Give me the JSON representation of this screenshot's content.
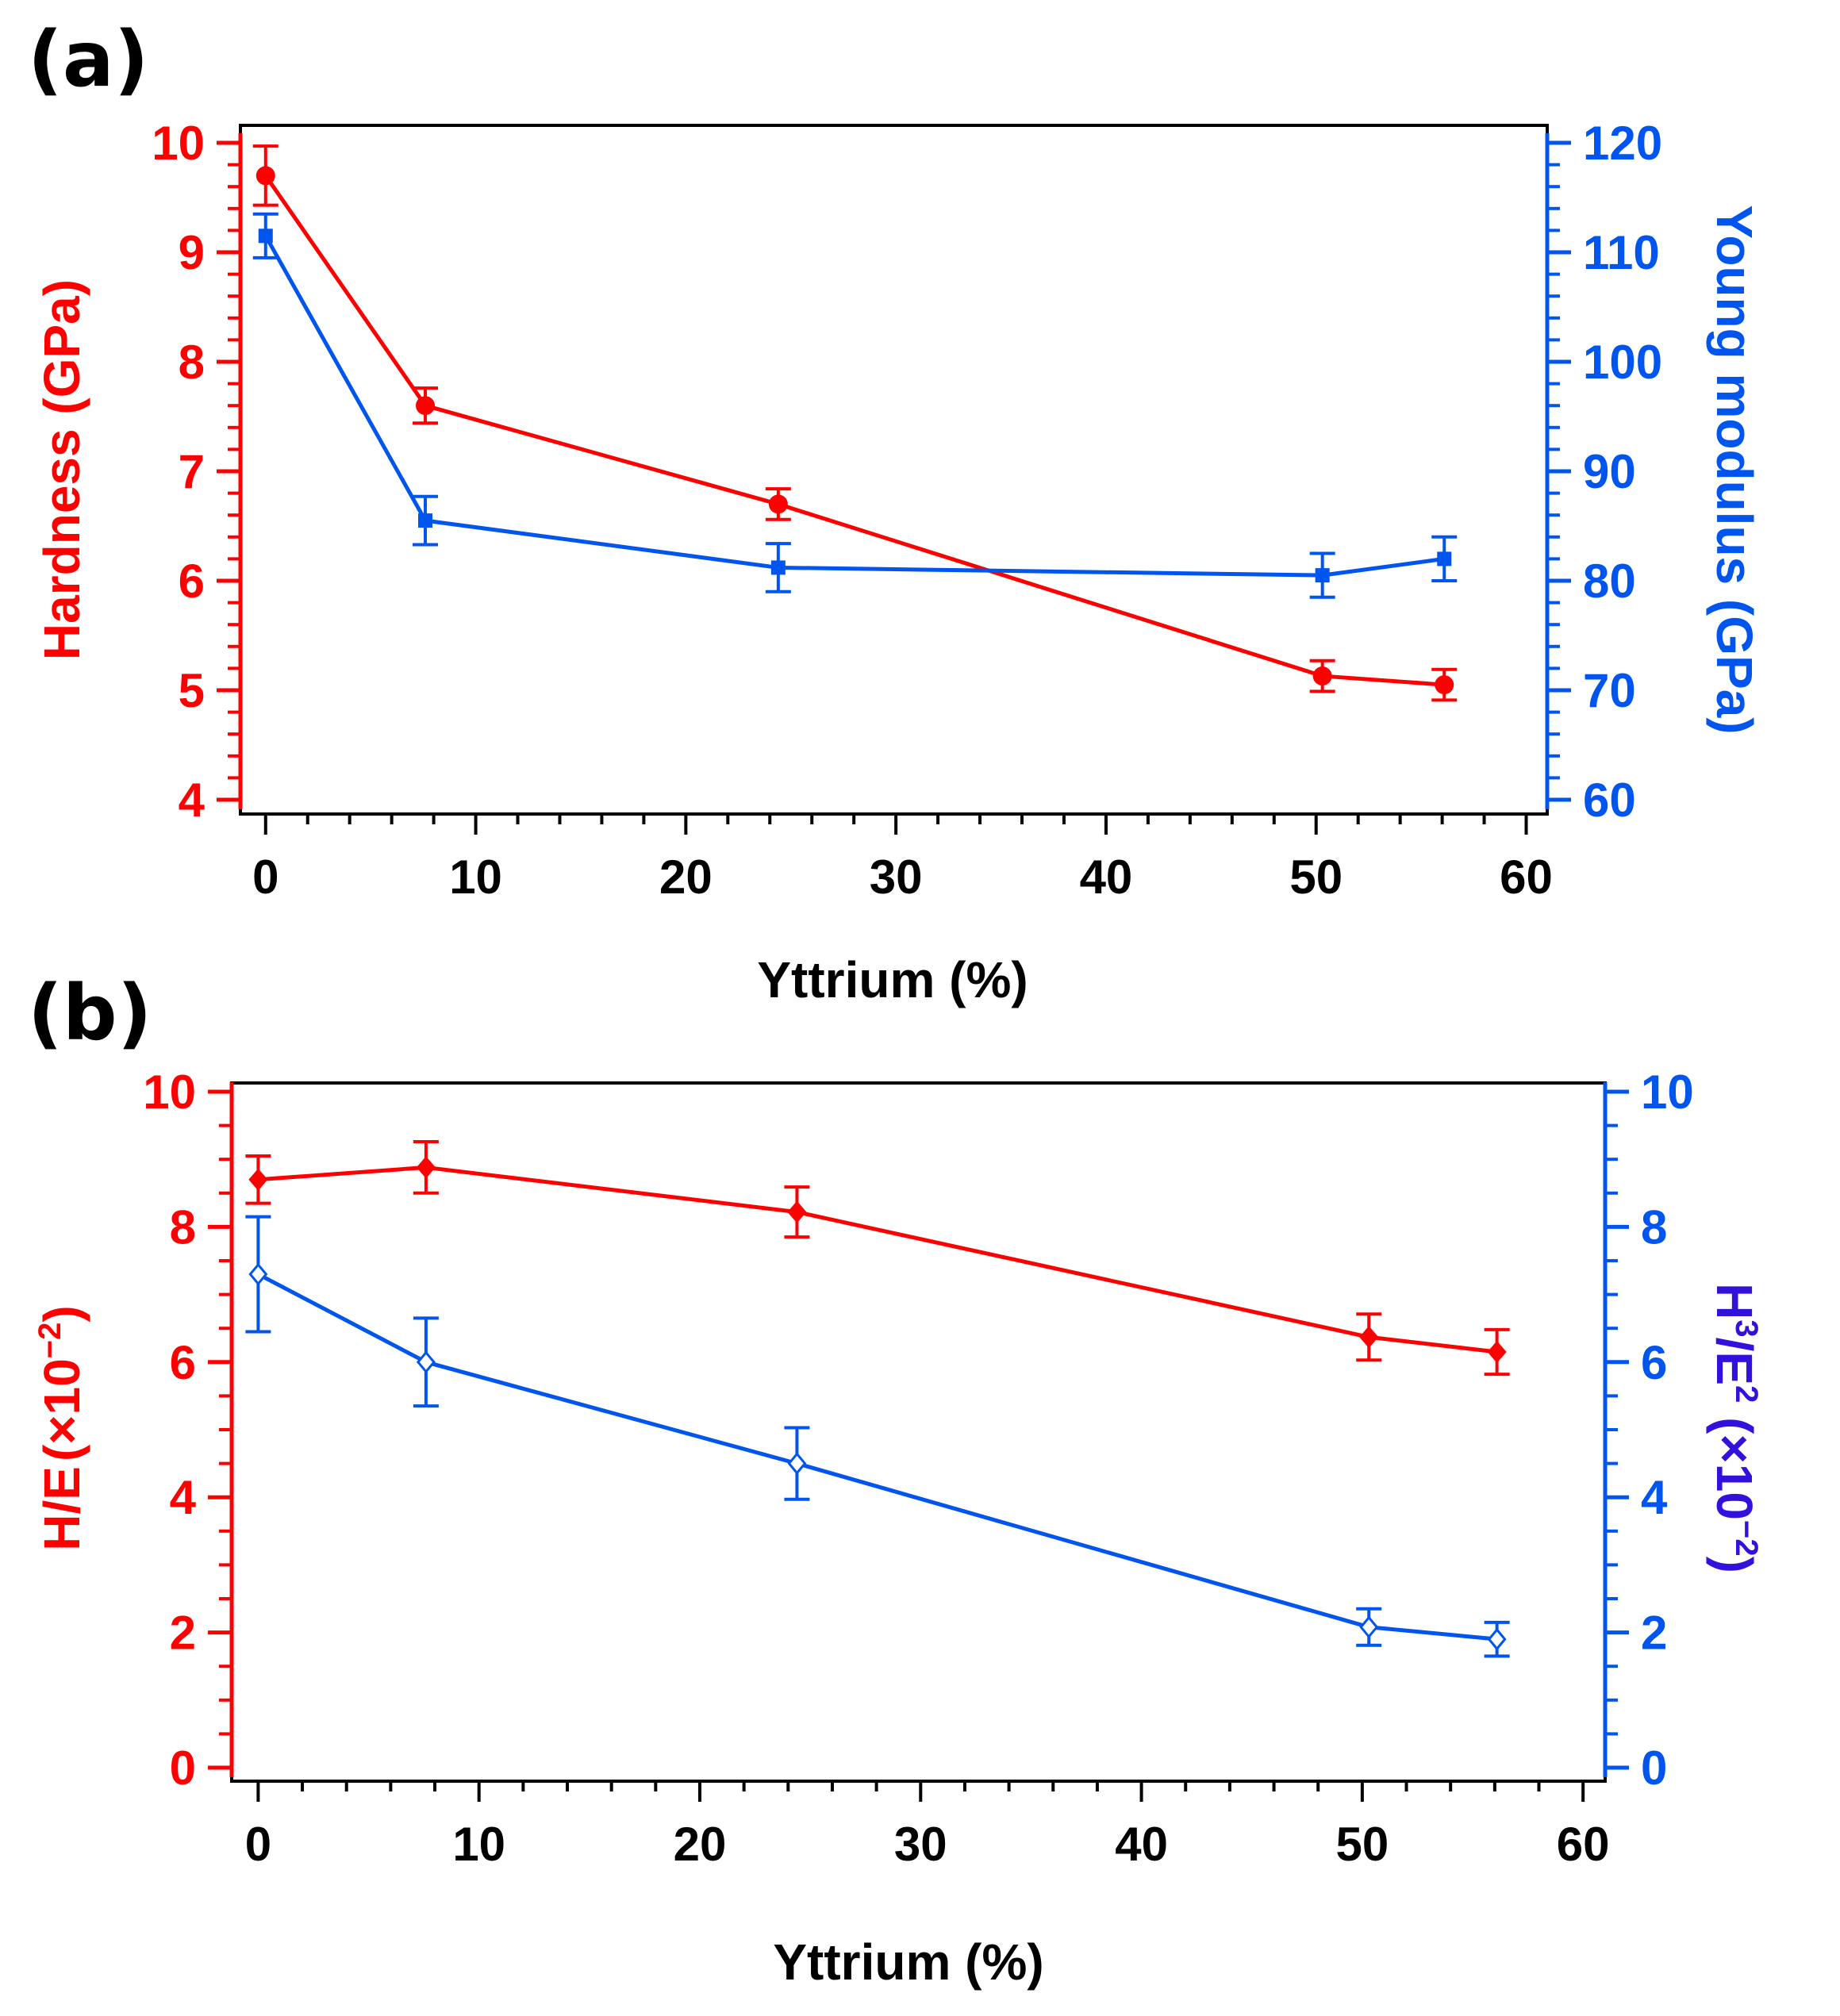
{
  "chart_data": [
    {
      "panel_label": "(a)",
      "type": "line",
      "xlabel": "Yttrium (%)",
      "xlim": [
        -1.2,
        61
      ],
      "xticks": [
        0,
        10,
        20,
        30,
        40,
        50,
        60
      ],
      "y_left": {
        "label": "Hardness (GPa)",
        "lim": [
          4,
          10
        ],
        "ticks": [
          4,
          5,
          6,
          7,
          8,
          9,
          10
        ],
        "color": "#ff0000"
      },
      "y_right": {
        "label": "Young modulus (GPa)",
        "lim": [
          60,
          120
        ],
        "ticks": [
          60,
          70,
          80,
          90,
          100,
          110,
          120
        ],
        "color": "#0055ee"
      },
      "series": [
        {
          "name": "Hardness",
          "axis": "left",
          "color": "#ff0000",
          "marker": "circle",
          "x": [
            0,
            7.6,
            24.4,
            50.3,
            56.1
          ],
          "y": [
            9.7,
            7.6,
            6.7,
            5.13,
            5.05
          ],
          "err": [
            0.27,
            0.16,
            0.14,
            0.14,
            0.14
          ]
        },
        {
          "name": "Young modulus",
          "axis": "right",
          "color": "#0055ee",
          "marker": "square",
          "x": [
            0,
            7.6,
            24.4,
            50.3,
            56.1
          ],
          "y": [
            111.5,
            85.5,
            81.2,
            80.5,
            82.0
          ],
          "err": [
            2.0,
            2.2,
            2.2,
            2.0,
            2.0
          ]
        }
      ]
    },
    {
      "panel_label": "(b)",
      "type": "line",
      "xlabel": "Yttrium (%)",
      "xlim": [
        -1.2,
        61
      ],
      "xticks": [
        0,
        10,
        20,
        30,
        40,
        50,
        60
      ],
      "y_left": {
        "label_main": "H/E",
        "label_suffix": "(×10",
        "label_exp": "−2",
        "label_close": ")",
        "lim": [
          0,
          10
        ],
        "ticks": [
          0,
          2,
          4,
          6,
          8,
          10
        ],
        "color": "#ff0000"
      },
      "y_right": {
        "label_h": "H",
        "label_h_exp": "3",
        "label_e": "/E",
        "label_e_exp": "2",
        "label_suffix": " (×10",
        "label_exp": "−2",
        "label_close": ")",
        "lim": [
          0,
          10
        ],
        "ticks": [
          0,
          2,
          4,
          6,
          8,
          10
        ],
        "color": "#0055ee",
        "label_color": "#3311dd"
      },
      "series": [
        {
          "name": "H/E",
          "axis": "left",
          "color": "#ff0000",
          "marker": "diamond",
          "x": [
            0,
            7.6,
            24.4,
            50.3,
            56.1
          ],
          "y": [
            8.7,
            8.88,
            8.22,
            6.37,
            6.15
          ],
          "err": [
            0.35,
            0.38,
            0.37,
            0.34,
            0.33
          ]
        },
        {
          "name": "H3/E2",
          "axis": "right",
          "color": "#0055ee",
          "marker": "open-diamond",
          "x": [
            0,
            7.6,
            24.4,
            50.3,
            56.1
          ],
          "y": [
            7.3,
            6.0,
            4.5,
            2.08,
            1.9
          ],
          "err": [
            0.85,
            0.65,
            0.53,
            0.27,
            0.25
          ]
        }
      ]
    }
  ]
}
